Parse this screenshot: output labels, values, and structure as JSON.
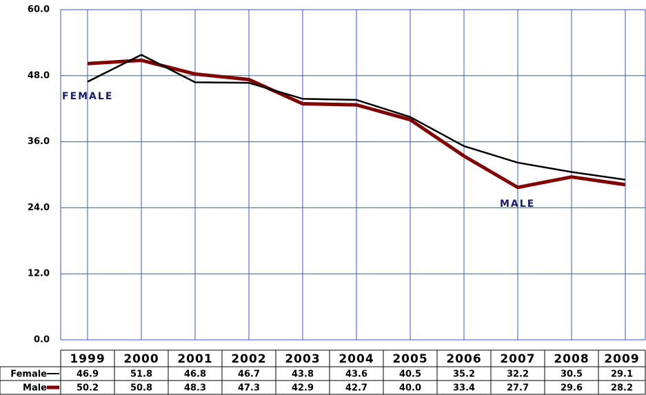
{
  "chart_data": {
    "type": "line",
    "categories": [
      "1999",
      "2000",
      "2001",
      "2002",
      "2003",
      "2004",
      "2005",
      "2006",
      "2007",
      "2008",
      "2009"
    ],
    "series": [
      {
        "name": "Female",
        "color": "#000000",
        "values": [
          46.9,
          51.8,
          46.8,
          46.7,
          43.8,
          43.6,
          40.5,
          35.2,
          32.2,
          30.5,
          29.1
        ],
        "value_labels": [
          "46.9",
          "51.8",
          "46.8",
          "46.7",
          "43.8",
          "43.6",
          "40.5",
          "35.2",
          "32.2",
          "30.5",
          "29.1"
        ]
      },
      {
        "name": "Male",
        "color": "#800000",
        "values": [
          50.2,
          50.8,
          48.3,
          47.3,
          42.9,
          42.7,
          40.0,
          33.4,
          27.7,
          29.6,
          28.2
        ],
        "value_labels": [
          "50.2",
          "50.8",
          "48.3",
          "47.3",
          "42.9",
          "42.7",
          "40.0",
          "33.4",
          "27.7",
          "29.6",
          "28.2"
        ]
      }
    ],
    "annotations": [
      "FEMALE",
      "MALE"
    ],
    "ylim": [
      0,
      60
    ],
    "yticks": [
      {
        "value": 0,
        "label": "0.0"
      },
      {
        "value": 12,
        "label": "12.0"
      },
      {
        "value": 24,
        "label": "24.0"
      },
      {
        "value": 36,
        "label": "36.0"
      },
      {
        "value": 48,
        "label": "48.0"
      },
      {
        "value": 60,
        "label": "60.0"
      }
    ],
    "grid": true,
    "grid_color": "#3355cc"
  }
}
